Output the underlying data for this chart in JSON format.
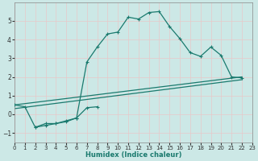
{
  "xlabel": "Humidex (Indice chaleur)",
  "background_color": "#cce8e6",
  "grid_color": "#b8d8d6",
  "line_color": "#1a7a6e",
  "xlim": [
    0,
    23
  ],
  "ylim": [
    -1.5,
    6.0
  ],
  "xticks": [
    0,
    1,
    2,
    3,
    4,
    5,
    6,
    7,
    8,
    9,
    10,
    11,
    12,
    13,
    14,
    15,
    16,
    17,
    18,
    19,
    20,
    21,
    22,
    23
  ],
  "yticks": [
    -1,
    0,
    1,
    2,
    3,
    4,
    5
  ],
  "series1_x": [
    0,
    1,
    2,
    3,
    4,
    5,
    6,
    7,
    8,
    9,
    10,
    11,
    12,
    13,
    14,
    15,
    16,
    17,
    18,
    19,
    20,
    21,
    22
  ],
  "series1_y": [
    0.5,
    0.4,
    -0.7,
    -0.6,
    -0.5,
    -0.4,
    -0.2,
    2.8,
    3.6,
    4.3,
    4.4,
    5.2,
    5.1,
    5.45,
    5.5,
    4.7,
    4.05,
    3.3,
    3.1,
    3.6,
    3.15,
    2.0,
    1.95
  ],
  "series2_x": [
    2,
    3,
    4,
    5,
    6,
    7,
    8
  ],
  "series2_y": [
    -0.7,
    -0.5,
    -0.5,
    -0.35,
    -0.2,
    0.35,
    0.4
  ],
  "line1_x": [
    0,
    22
  ],
  "line1_y": [
    0.5,
    2.0
  ],
  "line2_x": [
    0,
    22
  ],
  "line2_y": [
    0.3,
    1.85
  ]
}
